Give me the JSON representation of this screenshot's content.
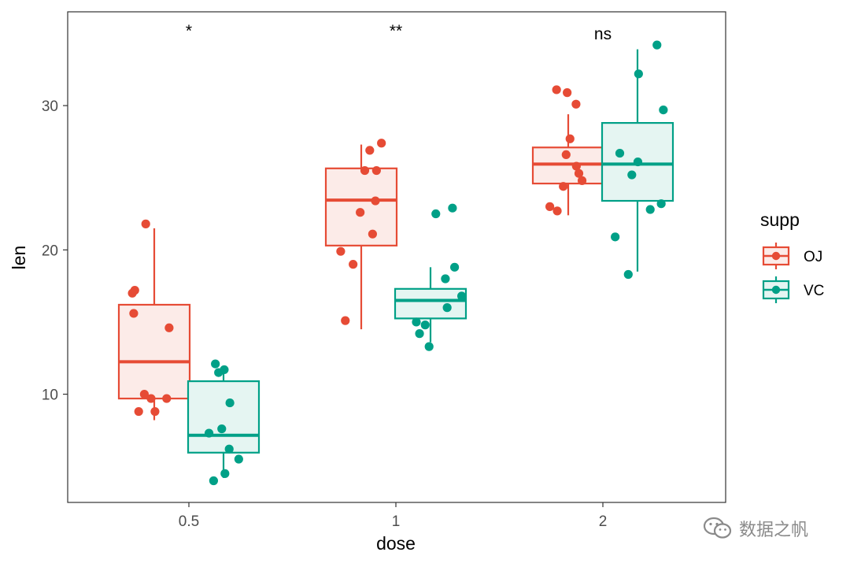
{
  "chart_data": {
    "type": "boxplot",
    "xlabel": "dose",
    "ylabel": "len",
    "categories": [
      "0.5",
      "1",
      "2"
    ],
    "ylim": [
      2.5,
      36.5
    ],
    "yticks": [
      10,
      20,
      30
    ],
    "grid": false,
    "legend": {
      "title": "supp",
      "position": "right",
      "entries": [
        {
          "label": "OJ",
          "color": "#E64B35"
        },
        {
          "label": "VC",
          "color": "#00A087"
        }
      ]
    },
    "significance": [
      "*",
      "**",
      "ns"
    ],
    "series": [
      {
        "name": "OJ",
        "color": "#E64B35",
        "fill": "#FCEBE8",
        "boxes": [
          {
            "category": "0.5",
            "q1": 9.7,
            "median": 12.25,
            "q3": 16.2,
            "whisker_low": 8.2,
            "whisker_high": 21.5
          },
          {
            "category": "1",
            "q1": 20.3,
            "median": 23.45,
            "q3": 25.65,
            "whisker_low": 14.5,
            "whisker_high": 27.3
          },
          {
            "category": "2",
            "q1": 24.6,
            "median": 25.95,
            "q3": 27.1,
            "whisker_low": 22.4,
            "whisker_high": 29.4
          }
        ],
        "points": [
          {
            "category": "0.5",
            "values": [
              21.8,
              17.0,
              17.2,
              15.6,
              14.6,
              10.0,
              9.7,
              9.7,
              8.8,
              8.8
            ],
            "offsets": [
              -0.24,
              -0.62,
              -0.55,
              -0.58,
              0.42,
              -0.28,
              -0.09,
              0.35,
              -0.44,
              0.02
            ]
          },
          {
            "category": "1",
            "values": [
              27.4,
              26.9,
              25.5,
              25.5,
              23.4,
              22.6,
              21.1,
              19.9,
              19.0,
              15.1
            ],
            "offsets": [
              0.57,
              0.24,
              0.1,
              0.43,
              0.4,
              -0.03,
              0.32,
              -0.58,
              -0.23,
              -0.45
            ]
          },
          {
            "category": "2",
            "values": [
              31.1,
              30.9,
              30.1,
              27.7,
              26.6,
              25.8,
              25.3,
              24.4,
              24.8,
              23.0,
              22.7
            ],
            "offsets": [
              -0.33,
              -0.03,
              0.22,
              0.05,
              -0.06,
              0.23,
              0.3,
              -0.14,
              0.39,
              -0.52,
              -0.31
            ]
          }
        ]
      },
      {
        "name": "VC",
        "color": "#00A087",
        "fill": "#E5F5F2",
        "boxes": [
          {
            "category": "0.5",
            "q1": 5.95,
            "median": 7.15,
            "q3": 10.9,
            "whisker_low": 4.2,
            "whisker_high": 11.5
          },
          {
            "category": "1",
            "q1": 15.25,
            "median": 16.5,
            "q3": 17.3,
            "whisker_low": 13.6,
            "whisker_high": 18.8
          },
          {
            "category": "2",
            "q1": 23.4,
            "median": 25.95,
            "q3": 28.8,
            "whisker_low": 18.5,
            "whisker_high": 33.9
          }
        ],
        "points": [
          {
            "category": "0.5",
            "values": [
              12.1,
              11.5,
              11.7,
              9.4,
              7.6,
              7.3,
              6.2,
              5.5,
              4.5,
              4.0
            ],
            "offsets": [
              -0.23,
              -0.14,
              0.02,
              0.18,
              -0.05,
              -0.41,
              0.16,
              0.43,
              0.04,
              -0.28
            ]
          },
          {
            "category": "1",
            "values": [
              22.9,
              22.5,
              18.8,
              18.0,
              16.8,
              16.0,
              15.0,
              14.8,
              14.2,
              13.3
            ],
            "offsets": [
              0.62,
              0.15,
              0.68,
              0.42,
              0.88,
              0.47,
              -0.4,
              -0.15,
              -0.31,
              -0.04
            ]
          },
          {
            "category": "2",
            "values": [
              34.2,
              32.2,
              29.7,
              26.7,
              26.1,
              25.2,
              23.2,
              22.8,
              20.9,
              18.3
            ],
            "offsets": [
              0.55,
              0.03,
              0.73,
              -0.5,
              0.01,
              -0.16,
              0.67,
              0.36,
              -0.63,
              -0.26
            ]
          }
        ]
      }
    ]
  },
  "watermark": {
    "icon": "wechat-icon",
    "text": "数据之帆"
  }
}
